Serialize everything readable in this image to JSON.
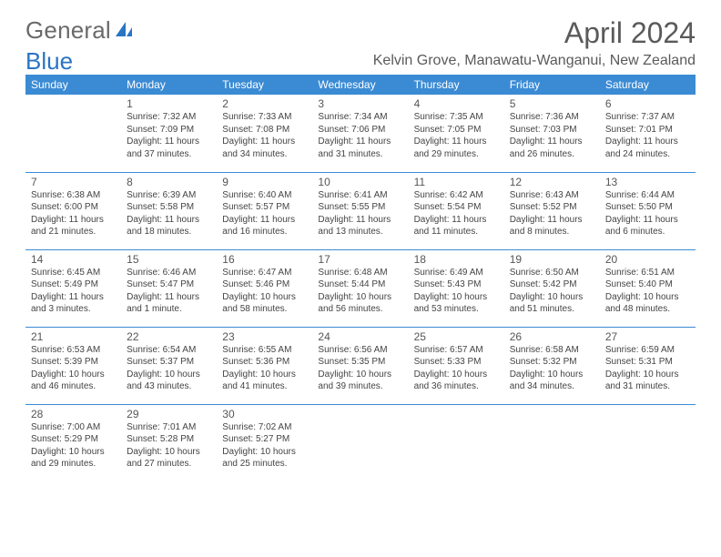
{
  "logo": {
    "word1": "General",
    "word2": "Blue",
    "accent_color": "#2a74c4",
    "text_color": "#6a6a6a"
  },
  "header": {
    "month_title": "April 2024",
    "location": "Kelvin Grove, Manawatu-Wanganui, New Zealand",
    "title_color": "#5a5a5a"
  },
  "calendar": {
    "header_bg": "#3b8bd4",
    "header_fg": "#ffffff",
    "rule_color": "#3b8bd4",
    "day_headers": [
      "Sunday",
      "Monday",
      "Tuesday",
      "Wednesday",
      "Thursday",
      "Friday",
      "Saturday"
    ],
    "weeks": [
      [
        {},
        {
          "n": "1",
          "sunrise": "Sunrise: 7:32 AM",
          "sunset": "Sunset: 7:09 PM",
          "d1": "Daylight: 11 hours",
          "d2": "and 37 minutes."
        },
        {
          "n": "2",
          "sunrise": "Sunrise: 7:33 AM",
          "sunset": "Sunset: 7:08 PM",
          "d1": "Daylight: 11 hours",
          "d2": "and 34 minutes."
        },
        {
          "n": "3",
          "sunrise": "Sunrise: 7:34 AM",
          "sunset": "Sunset: 7:06 PM",
          "d1": "Daylight: 11 hours",
          "d2": "and 31 minutes."
        },
        {
          "n": "4",
          "sunrise": "Sunrise: 7:35 AM",
          "sunset": "Sunset: 7:05 PM",
          "d1": "Daylight: 11 hours",
          "d2": "and 29 minutes."
        },
        {
          "n": "5",
          "sunrise": "Sunrise: 7:36 AM",
          "sunset": "Sunset: 7:03 PM",
          "d1": "Daylight: 11 hours",
          "d2": "and 26 minutes."
        },
        {
          "n": "6",
          "sunrise": "Sunrise: 7:37 AM",
          "sunset": "Sunset: 7:01 PM",
          "d1": "Daylight: 11 hours",
          "d2": "and 24 minutes."
        }
      ],
      [
        {
          "n": "7",
          "sunrise": "Sunrise: 6:38 AM",
          "sunset": "Sunset: 6:00 PM",
          "d1": "Daylight: 11 hours",
          "d2": "and 21 minutes."
        },
        {
          "n": "8",
          "sunrise": "Sunrise: 6:39 AM",
          "sunset": "Sunset: 5:58 PM",
          "d1": "Daylight: 11 hours",
          "d2": "and 18 minutes."
        },
        {
          "n": "9",
          "sunrise": "Sunrise: 6:40 AM",
          "sunset": "Sunset: 5:57 PM",
          "d1": "Daylight: 11 hours",
          "d2": "and 16 minutes."
        },
        {
          "n": "10",
          "sunrise": "Sunrise: 6:41 AM",
          "sunset": "Sunset: 5:55 PM",
          "d1": "Daylight: 11 hours",
          "d2": "and 13 minutes."
        },
        {
          "n": "11",
          "sunrise": "Sunrise: 6:42 AM",
          "sunset": "Sunset: 5:54 PM",
          "d1": "Daylight: 11 hours",
          "d2": "and 11 minutes."
        },
        {
          "n": "12",
          "sunrise": "Sunrise: 6:43 AM",
          "sunset": "Sunset: 5:52 PM",
          "d1": "Daylight: 11 hours",
          "d2": "and 8 minutes."
        },
        {
          "n": "13",
          "sunrise": "Sunrise: 6:44 AM",
          "sunset": "Sunset: 5:50 PM",
          "d1": "Daylight: 11 hours",
          "d2": "and 6 minutes."
        }
      ],
      [
        {
          "n": "14",
          "sunrise": "Sunrise: 6:45 AM",
          "sunset": "Sunset: 5:49 PM",
          "d1": "Daylight: 11 hours",
          "d2": "and 3 minutes."
        },
        {
          "n": "15",
          "sunrise": "Sunrise: 6:46 AM",
          "sunset": "Sunset: 5:47 PM",
          "d1": "Daylight: 11 hours",
          "d2": "and 1 minute."
        },
        {
          "n": "16",
          "sunrise": "Sunrise: 6:47 AM",
          "sunset": "Sunset: 5:46 PM",
          "d1": "Daylight: 10 hours",
          "d2": "and 58 minutes."
        },
        {
          "n": "17",
          "sunrise": "Sunrise: 6:48 AM",
          "sunset": "Sunset: 5:44 PM",
          "d1": "Daylight: 10 hours",
          "d2": "and 56 minutes."
        },
        {
          "n": "18",
          "sunrise": "Sunrise: 6:49 AM",
          "sunset": "Sunset: 5:43 PM",
          "d1": "Daylight: 10 hours",
          "d2": "and 53 minutes."
        },
        {
          "n": "19",
          "sunrise": "Sunrise: 6:50 AM",
          "sunset": "Sunset: 5:42 PM",
          "d1": "Daylight: 10 hours",
          "d2": "and 51 minutes."
        },
        {
          "n": "20",
          "sunrise": "Sunrise: 6:51 AM",
          "sunset": "Sunset: 5:40 PM",
          "d1": "Daylight: 10 hours",
          "d2": "and 48 minutes."
        }
      ],
      [
        {
          "n": "21",
          "sunrise": "Sunrise: 6:53 AM",
          "sunset": "Sunset: 5:39 PM",
          "d1": "Daylight: 10 hours",
          "d2": "and 46 minutes."
        },
        {
          "n": "22",
          "sunrise": "Sunrise: 6:54 AM",
          "sunset": "Sunset: 5:37 PM",
          "d1": "Daylight: 10 hours",
          "d2": "and 43 minutes."
        },
        {
          "n": "23",
          "sunrise": "Sunrise: 6:55 AM",
          "sunset": "Sunset: 5:36 PM",
          "d1": "Daylight: 10 hours",
          "d2": "and 41 minutes."
        },
        {
          "n": "24",
          "sunrise": "Sunrise: 6:56 AM",
          "sunset": "Sunset: 5:35 PM",
          "d1": "Daylight: 10 hours",
          "d2": "and 39 minutes."
        },
        {
          "n": "25",
          "sunrise": "Sunrise: 6:57 AM",
          "sunset": "Sunset: 5:33 PM",
          "d1": "Daylight: 10 hours",
          "d2": "and 36 minutes."
        },
        {
          "n": "26",
          "sunrise": "Sunrise: 6:58 AM",
          "sunset": "Sunset: 5:32 PM",
          "d1": "Daylight: 10 hours",
          "d2": "and 34 minutes."
        },
        {
          "n": "27",
          "sunrise": "Sunrise: 6:59 AM",
          "sunset": "Sunset: 5:31 PM",
          "d1": "Daylight: 10 hours",
          "d2": "and 31 minutes."
        }
      ],
      [
        {
          "n": "28",
          "sunrise": "Sunrise: 7:00 AM",
          "sunset": "Sunset: 5:29 PM",
          "d1": "Daylight: 10 hours",
          "d2": "and 29 minutes."
        },
        {
          "n": "29",
          "sunrise": "Sunrise: 7:01 AM",
          "sunset": "Sunset: 5:28 PM",
          "d1": "Daylight: 10 hours",
          "d2": "and 27 minutes."
        },
        {
          "n": "30",
          "sunrise": "Sunrise: 7:02 AM",
          "sunset": "Sunset: 5:27 PM",
          "d1": "Daylight: 10 hours",
          "d2": "and 25 minutes."
        },
        {},
        {},
        {},
        {}
      ]
    ]
  }
}
